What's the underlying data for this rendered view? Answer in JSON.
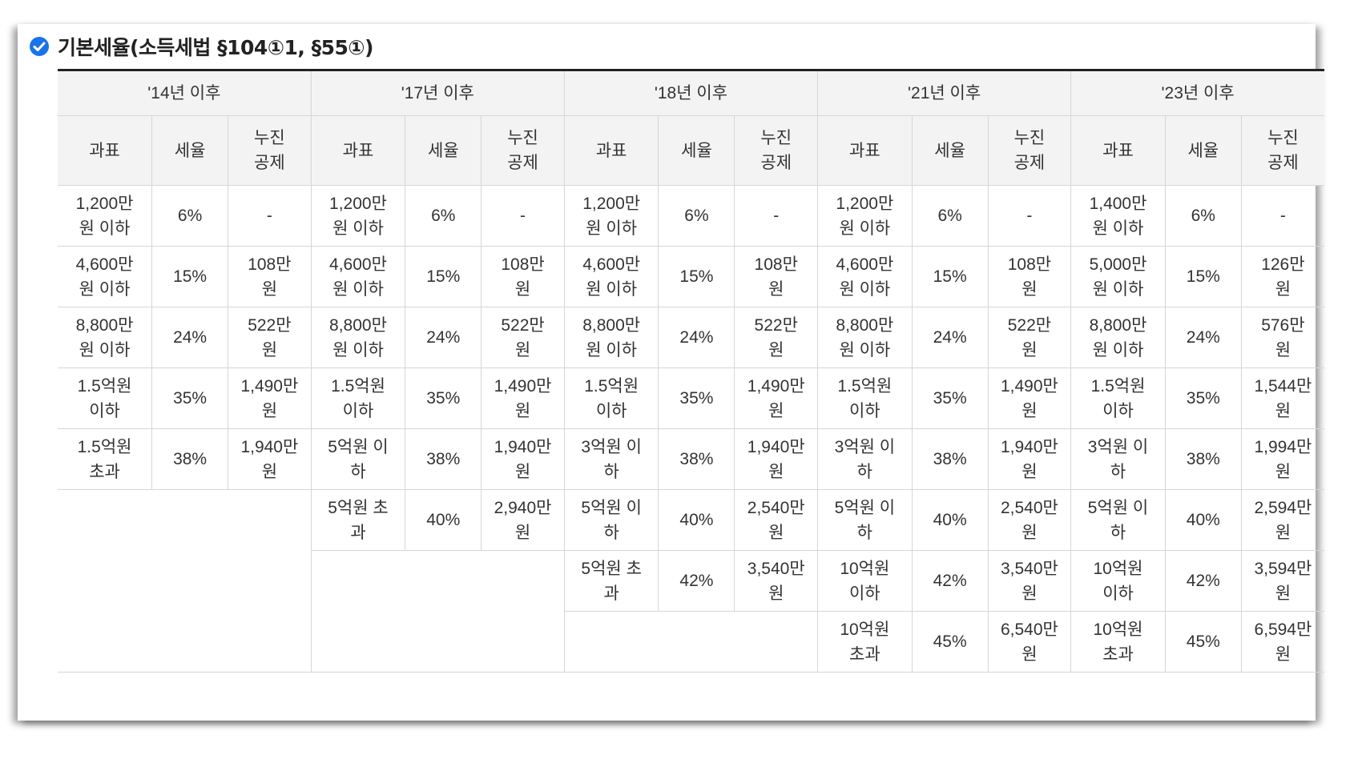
{
  "heading": {
    "title": "기본세율(소득세법 §104①1, §55①)",
    "icon": "check-circle-icon",
    "icon_color": "#1a73e8"
  },
  "periods": [
    "'14년 이후",
    "'17년 이후",
    "'18년 이후",
    "'21년 이후",
    "'23년 이후"
  ],
  "columns": [
    "과표",
    "세율",
    "누진\n공제"
  ],
  "rows": [
    [
      [
        "1,200만\n원 이하",
        "6%",
        "-"
      ],
      [
        "1,200만\n원 이하",
        "6%",
        "-"
      ],
      [
        "1,200만\n원 이하",
        "6%",
        "-"
      ],
      [
        "1,200만\n원 이하",
        "6%",
        "-"
      ],
      [
        "1,400만\n원 이하",
        "6%",
        "-"
      ]
    ],
    [
      [
        "4,600만\n원 이하",
        "15%",
        "108만\n원"
      ],
      [
        "4,600만\n원 이하",
        "15%",
        "108만\n원"
      ],
      [
        "4,600만\n원 이하",
        "15%",
        "108만\n원"
      ],
      [
        "4,600만\n원 이하",
        "15%",
        "108만\n원"
      ],
      [
        "5,000만\n원 이하",
        "15%",
        "126만\n원"
      ]
    ],
    [
      [
        "8,800만\n원 이하",
        "24%",
        "522만\n원"
      ],
      [
        "8,800만\n원 이하",
        "24%",
        "522만\n원"
      ],
      [
        "8,800만\n원 이하",
        "24%",
        "522만\n원"
      ],
      [
        "8,800만\n원 이하",
        "24%",
        "522만\n원"
      ],
      [
        "8,800만\n원 이하",
        "24%",
        "576만\n원"
      ]
    ],
    [
      [
        "1.5억원\n이하",
        "35%",
        "1,490만\n원"
      ],
      [
        "1.5억원\n이하",
        "35%",
        "1,490만\n원"
      ],
      [
        "1.5억원\n이하",
        "35%",
        "1,490만\n원"
      ],
      [
        "1.5억원\n이하",
        "35%",
        "1,490만\n원"
      ],
      [
        "1.5억원\n이하",
        "35%",
        "1,544만\n원"
      ]
    ],
    [
      [
        "1.5억원\n초과",
        "38%",
        "1,940만\n원"
      ],
      [
        "5억원 이\n하",
        "38%",
        "1,940만\n원"
      ],
      [
        "3억원 이\n하",
        "38%",
        "1,940만\n원"
      ],
      [
        "3억원 이\n하",
        "38%",
        "1,940만\n원"
      ],
      [
        "3억원 이\n하",
        "38%",
        "1,994만\n원"
      ]
    ],
    [
      null,
      [
        "5억원 초\n과",
        "40%",
        "2,940만\n원"
      ],
      [
        "5억원 이\n하",
        "40%",
        "2,540만\n원"
      ],
      [
        "5억원 이\n하",
        "40%",
        "2,540만\n원"
      ],
      [
        "5억원 이\n하",
        "40%",
        "2,594만\n원"
      ]
    ],
    [
      null,
      null,
      [
        "5억원 초\n과",
        "42%",
        "3,540만\n원"
      ],
      [
        "10억원\n이하",
        "42%",
        "3,540만\n원"
      ],
      [
        "10억원\n이하",
        "42%",
        "3,594만\n원"
      ]
    ],
    [
      null,
      null,
      null,
      [
        "10억원\n초과",
        "45%",
        "6,540만\n원"
      ],
      [
        "10억원\n초과",
        "45%",
        "6,594만\n원"
      ]
    ]
  ]
}
